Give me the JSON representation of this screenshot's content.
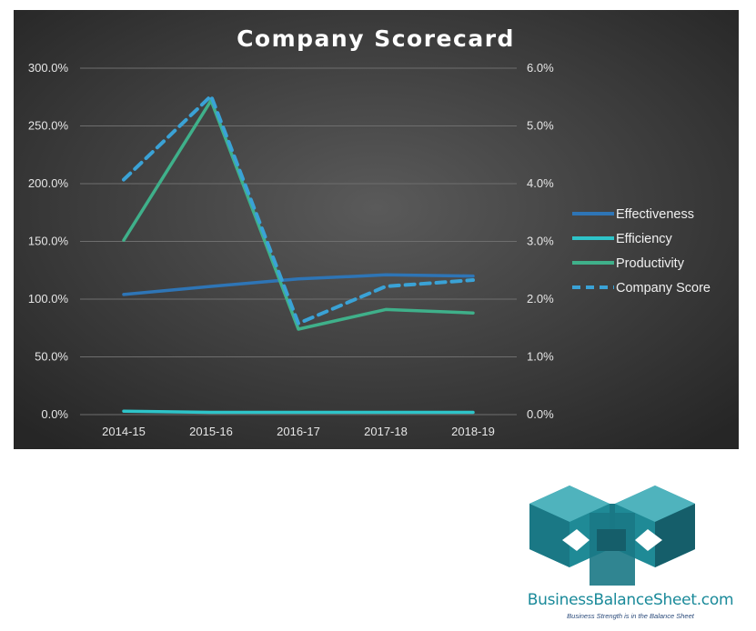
{
  "chart_data": {
    "type": "line",
    "title": "Company Scorecard",
    "categories": [
      "2014-15",
      "2015-16",
      "2016-17",
      "2017-18",
      "2018-19"
    ],
    "y_left": {
      "ylim": [
        0,
        300
      ],
      "ticks": [
        0,
        50,
        100,
        150,
        200,
        250,
        300
      ],
      "tick_labels": [
        "0.0%",
        "50.0%",
        "100.0%",
        "150.0%",
        "200.0%",
        "250.0%",
        "300.0%"
      ]
    },
    "y_right": {
      "ylim": [
        0,
        6
      ],
      "ticks": [
        0,
        1,
        2,
        3,
        4,
        5,
        6
      ],
      "tick_labels": [
        "0.0%",
        "1.0%",
        "2.0%",
        "3.0%",
        "4.0%",
        "5.0%",
        "6.0%"
      ]
    },
    "series": [
      {
        "name": "Effectiveness",
        "axis": "left",
        "color": "#2e75b6",
        "dash": "solid",
        "values": [
          104,
          111,
          117.5,
          121,
          120
        ]
      },
      {
        "name": "Efficiency",
        "axis": "left",
        "color": "#2ec4c9",
        "dash": "solid",
        "values": [
          3,
          2,
          2,
          2,
          2
        ]
      },
      {
        "name": "Productivity",
        "axis": "left",
        "color": "#3fb08a",
        "dash": "solid",
        "values": [
          151,
          272,
          74,
          91,
          88
        ]
      },
      {
        "name": "Company Score",
        "axis": "right",
        "color": "#3aa2d6",
        "dash": "dashed",
        "values": [
          4.07,
          5.52,
          1.58,
          2.22,
          2.33
        ]
      }
    ],
    "legend_position": "right",
    "grid": true,
    "background": "dark radial gradient"
  },
  "brand": {
    "name": "BusinessBalanceSheet.com",
    "tagline": "Business Strength is in the Balance Sheet",
    "colors": {
      "teal": "#1f8a96",
      "dark_teal": "#155e6a",
      "light_teal": "#4fb3bd"
    }
  }
}
